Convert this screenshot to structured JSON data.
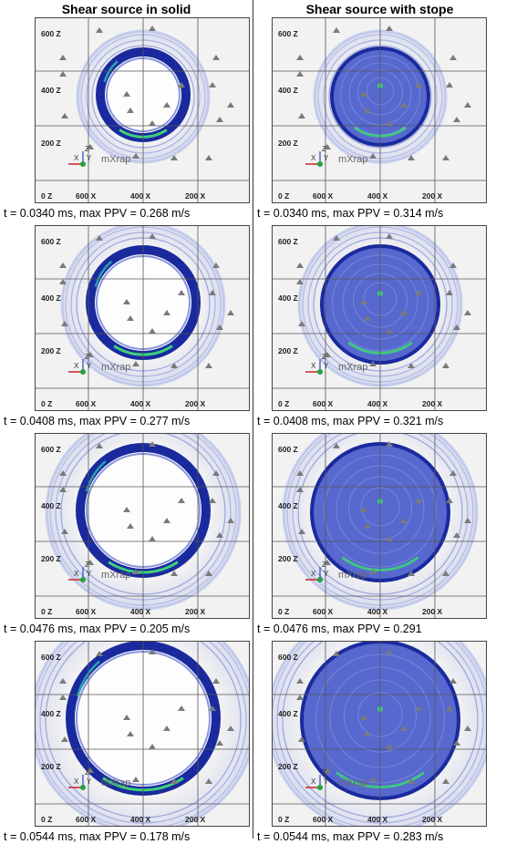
{
  "columns": [
    {
      "title": "Shear source in solid",
      "variant": "solid"
    },
    {
      "title": "Shear source with stope",
      "variant": "stope"
    }
  ],
  "rows": [
    {
      "captions": [
        "t = 0.0340 ms, max PPV = 0.268 m/s",
        "t = 0.0340 ms, max PPV = 0.314 m/s"
      ],
      "stage": 1
    },
    {
      "captions": [
        "t = 0.0408 ms, max PPV = 0.277 m/s",
        "t = 0.0408 ms, max PPV = 0.321 m/s"
      ],
      "stage": 2
    },
    {
      "captions": [
        "t = 0.0476 ms, max PPV = 0.205 m/s",
        "t = 0.0476 ms, max PPV = 0.291"
      ],
      "stage": 3
    },
    {
      "captions": [
        "t = 0.0544 ms, max PPV = 0.178 m/s",
        "t = 0.0544 ms, max PPV = 0.283 m/s"
      ],
      "stage": 4
    }
  ],
  "axis_labels": {
    "z": [
      "600 Z",
      "400 Z",
      "200 Z",
      "0 Z"
    ],
    "x": [
      "600 X",
      "400 X",
      "200 X"
    ]
  },
  "watermark": "mXrap",
  "triad_labels": {
    "x": "X",
    "y": "Y",
    "z": "Z"
  },
  "colors": {
    "wave_dark": "#1a2a9e",
    "wave_mid": "#3c50c8",
    "wave_light": "#a8b4e8",
    "wave_cyan": "#2bc0b0",
    "wave_green": "#3fd07a",
    "grid": "#555555",
    "sensor": "#7a7a7a"
  }
}
